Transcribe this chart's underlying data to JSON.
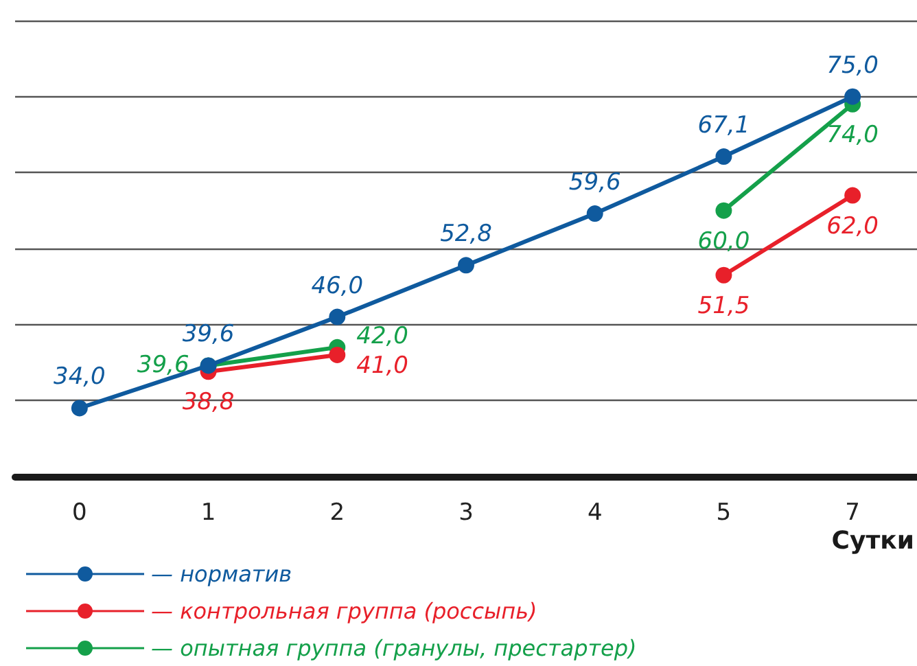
{
  "chart_data": {
    "type": "line",
    "xlabel": "Сутки",
    "categories": [
      "0",
      "1",
      "2",
      "3",
      "4",
      "5",
      "7"
    ],
    "series": [
      {
        "name": "— норматив",
        "color": "#0f5a9e",
        "values": [
          34.0,
          39.6,
          46.0,
          52.8,
          59.6,
          67.1,
          75.0
        ],
        "value_labels": [
          "34,0",
          "39,6",
          "46,0",
          "52,8",
          "59,6",
          "67,1",
          "75,0"
        ]
      },
      {
        "name": "— контрольная группа (россыпь)",
        "color": "#e8202a",
        "values": [
          null,
          38.8,
          41.0,
          null,
          null,
          51.5,
          62.0
        ],
        "value_labels": [
          null,
          "38,8",
          "41,0",
          null,
          null,
          "51,5",
          "62,0"
        ]
      },
      {
        "name": "— опытная группа (гранулы, престартер)",
        "color": "#14a04a",
        "values": [
          null,
          39.6,
          42.0,
          null,
          null,
          60.0,
          74.0
        ],
        "value_labels": [
          null,
          "39,6",
          "42,0",
          null,
          null,
          "60,0",
          "74,0"
        ]
      }
    ],
    "ylim": [
      25,
      85
    ],
    "yticks": [
      {
        "value": 25,
        "label": null
      },
      {
        "value": 35,
        "label": null
      },
      {
        "value": 45,
        "label": null
      },
      {
        "value": 55,
        "label": null
      },
      {
        "value": 65,
        "label": null
      },
      {
        "value": 75,
        "label": null
      },
      {
        "value": 85,
        "label": null
      }
    ],
    "grid": "y",
    "legend": "bottom left",
    "marker": "circle",
    "line_style": "solid"
  }
}
